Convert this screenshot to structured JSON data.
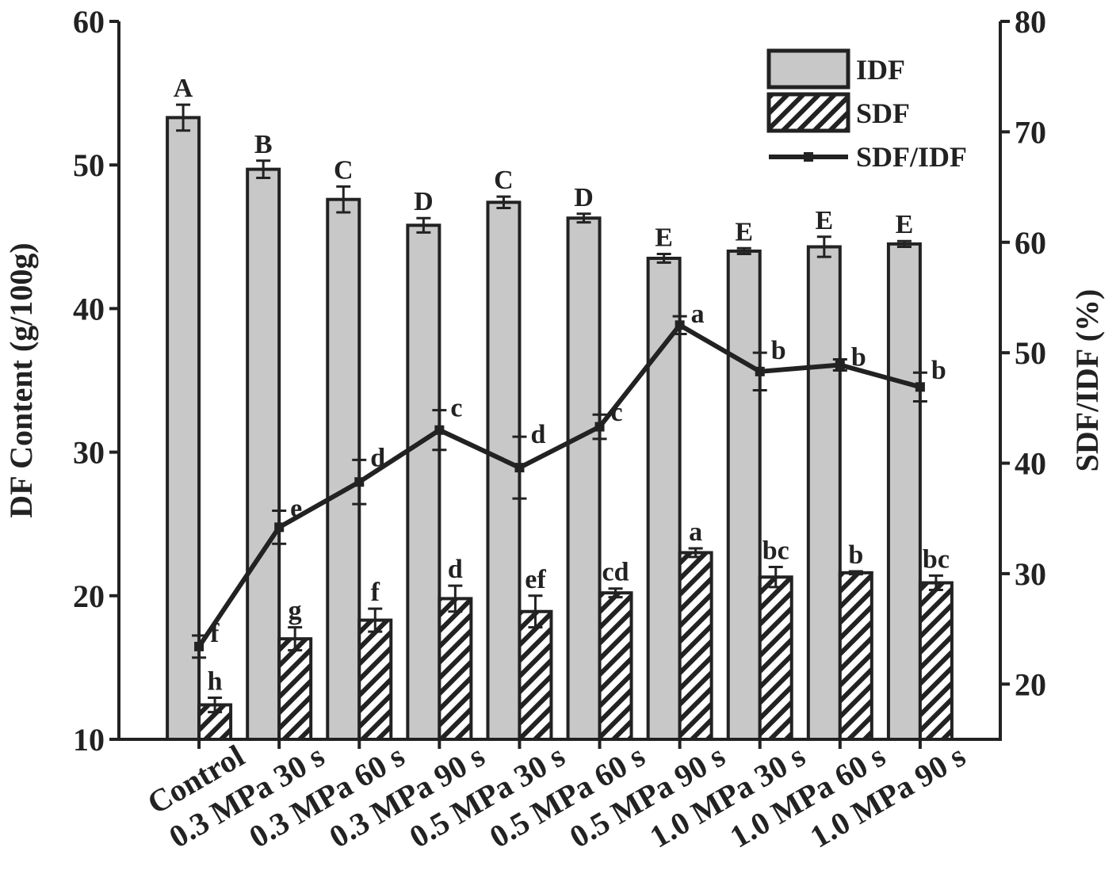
{
  "chart_data": {
    "type": "bar_line",
    "y_label": "DF Content (g/100g)",
    "y2_label": "SDF/IDF (%)",
    "categories": [
      "Control",
      "0.3 MPa 30 s",
      "0.3 MPa 60 s",
      "0.3 MPa 90 s",
      "0.5 MPa 30 s",
      "0.5 MPa 60 s",
      "0.5 MPa 90 s",
      "1.0 MPa 30 s",
      "1.0 MPa 60 s",
      "1.0 MPa 90 s"
    ],
    "ylim": [
      10,
      60
    ],
    "yticks": [
      10,
      20,
      30,
      40,
      50,
      60
    ],
    "y2lim": [
      15,
      80
    ],
    "y2ticks": [
      20,
      30,
      40,
      50,
      60,
      70,
      80
    ],
    "series": [
      {
        "name": "IDF",
        "kind": "bar",
        "color": "#c8c8c8",
        "values": [
          53.3,
          49.7,
          47.6,
          45.8,
          47.4,
          46.3,
          43.5,
          44.0,
          44.3,
          44.5
        ],
        "errors": [
          0.9,
          0.6,
          0.9,
          0.5,
          0.4,
          0.3,
          0.3,
          0.2,
          0.7,
          0.2
        ],
        "labels": [
          "A",
          "B",
          "C",
          "D",
          "C",
          "D",
          "E",
          "E",
          "E",
          "E"
        ]
      },
      {
        "name": "SDF",
        "kind": "bar",
        "color": "#ffffff",
        "hatch": true,
        "values": [
          12.4,
          17.0,
          18.3,
          19.8,
          18.9,
          20.2,
          23.0,
          21.3,
          21.6,
          20.9
        ],
        "errors": [
          0.5,
          0.8,
          0.8,
          0.9,
          1.1,
          0.3,
          0.3,
          0.7,
          0.1,
          0.5
        ],
        "labels": [
          "h",
          "g",
          "f",
          "d",
          "ef",
          "cd",
          "a",
          "bc",
          "b",
          "bc"
        ]
      },
      {
        "name": "SDF/IDF",
        "kind": "line",
        "axis": "y2",
        "color": "#222222",
        "values": [
          23.4,
          34.2,
          38.3,
          43.0,
          39.6,
          43.3,
          52.5,
          48.3,
          48.9,
          46.9
        ],
        "errors": [
          1.0,
          1.5,
          2.0,
          1.8,
          2.8,
          1.1,
          0.8,
          1.7,
          0.5,
          1.3
        ],
        "labels": [
          "f",
          "e",
          "d",
          "c",
          "d",
          "c",
          "a",
          "b",
          "b",
          "b"
        ]
      }
    ]
  }
}
